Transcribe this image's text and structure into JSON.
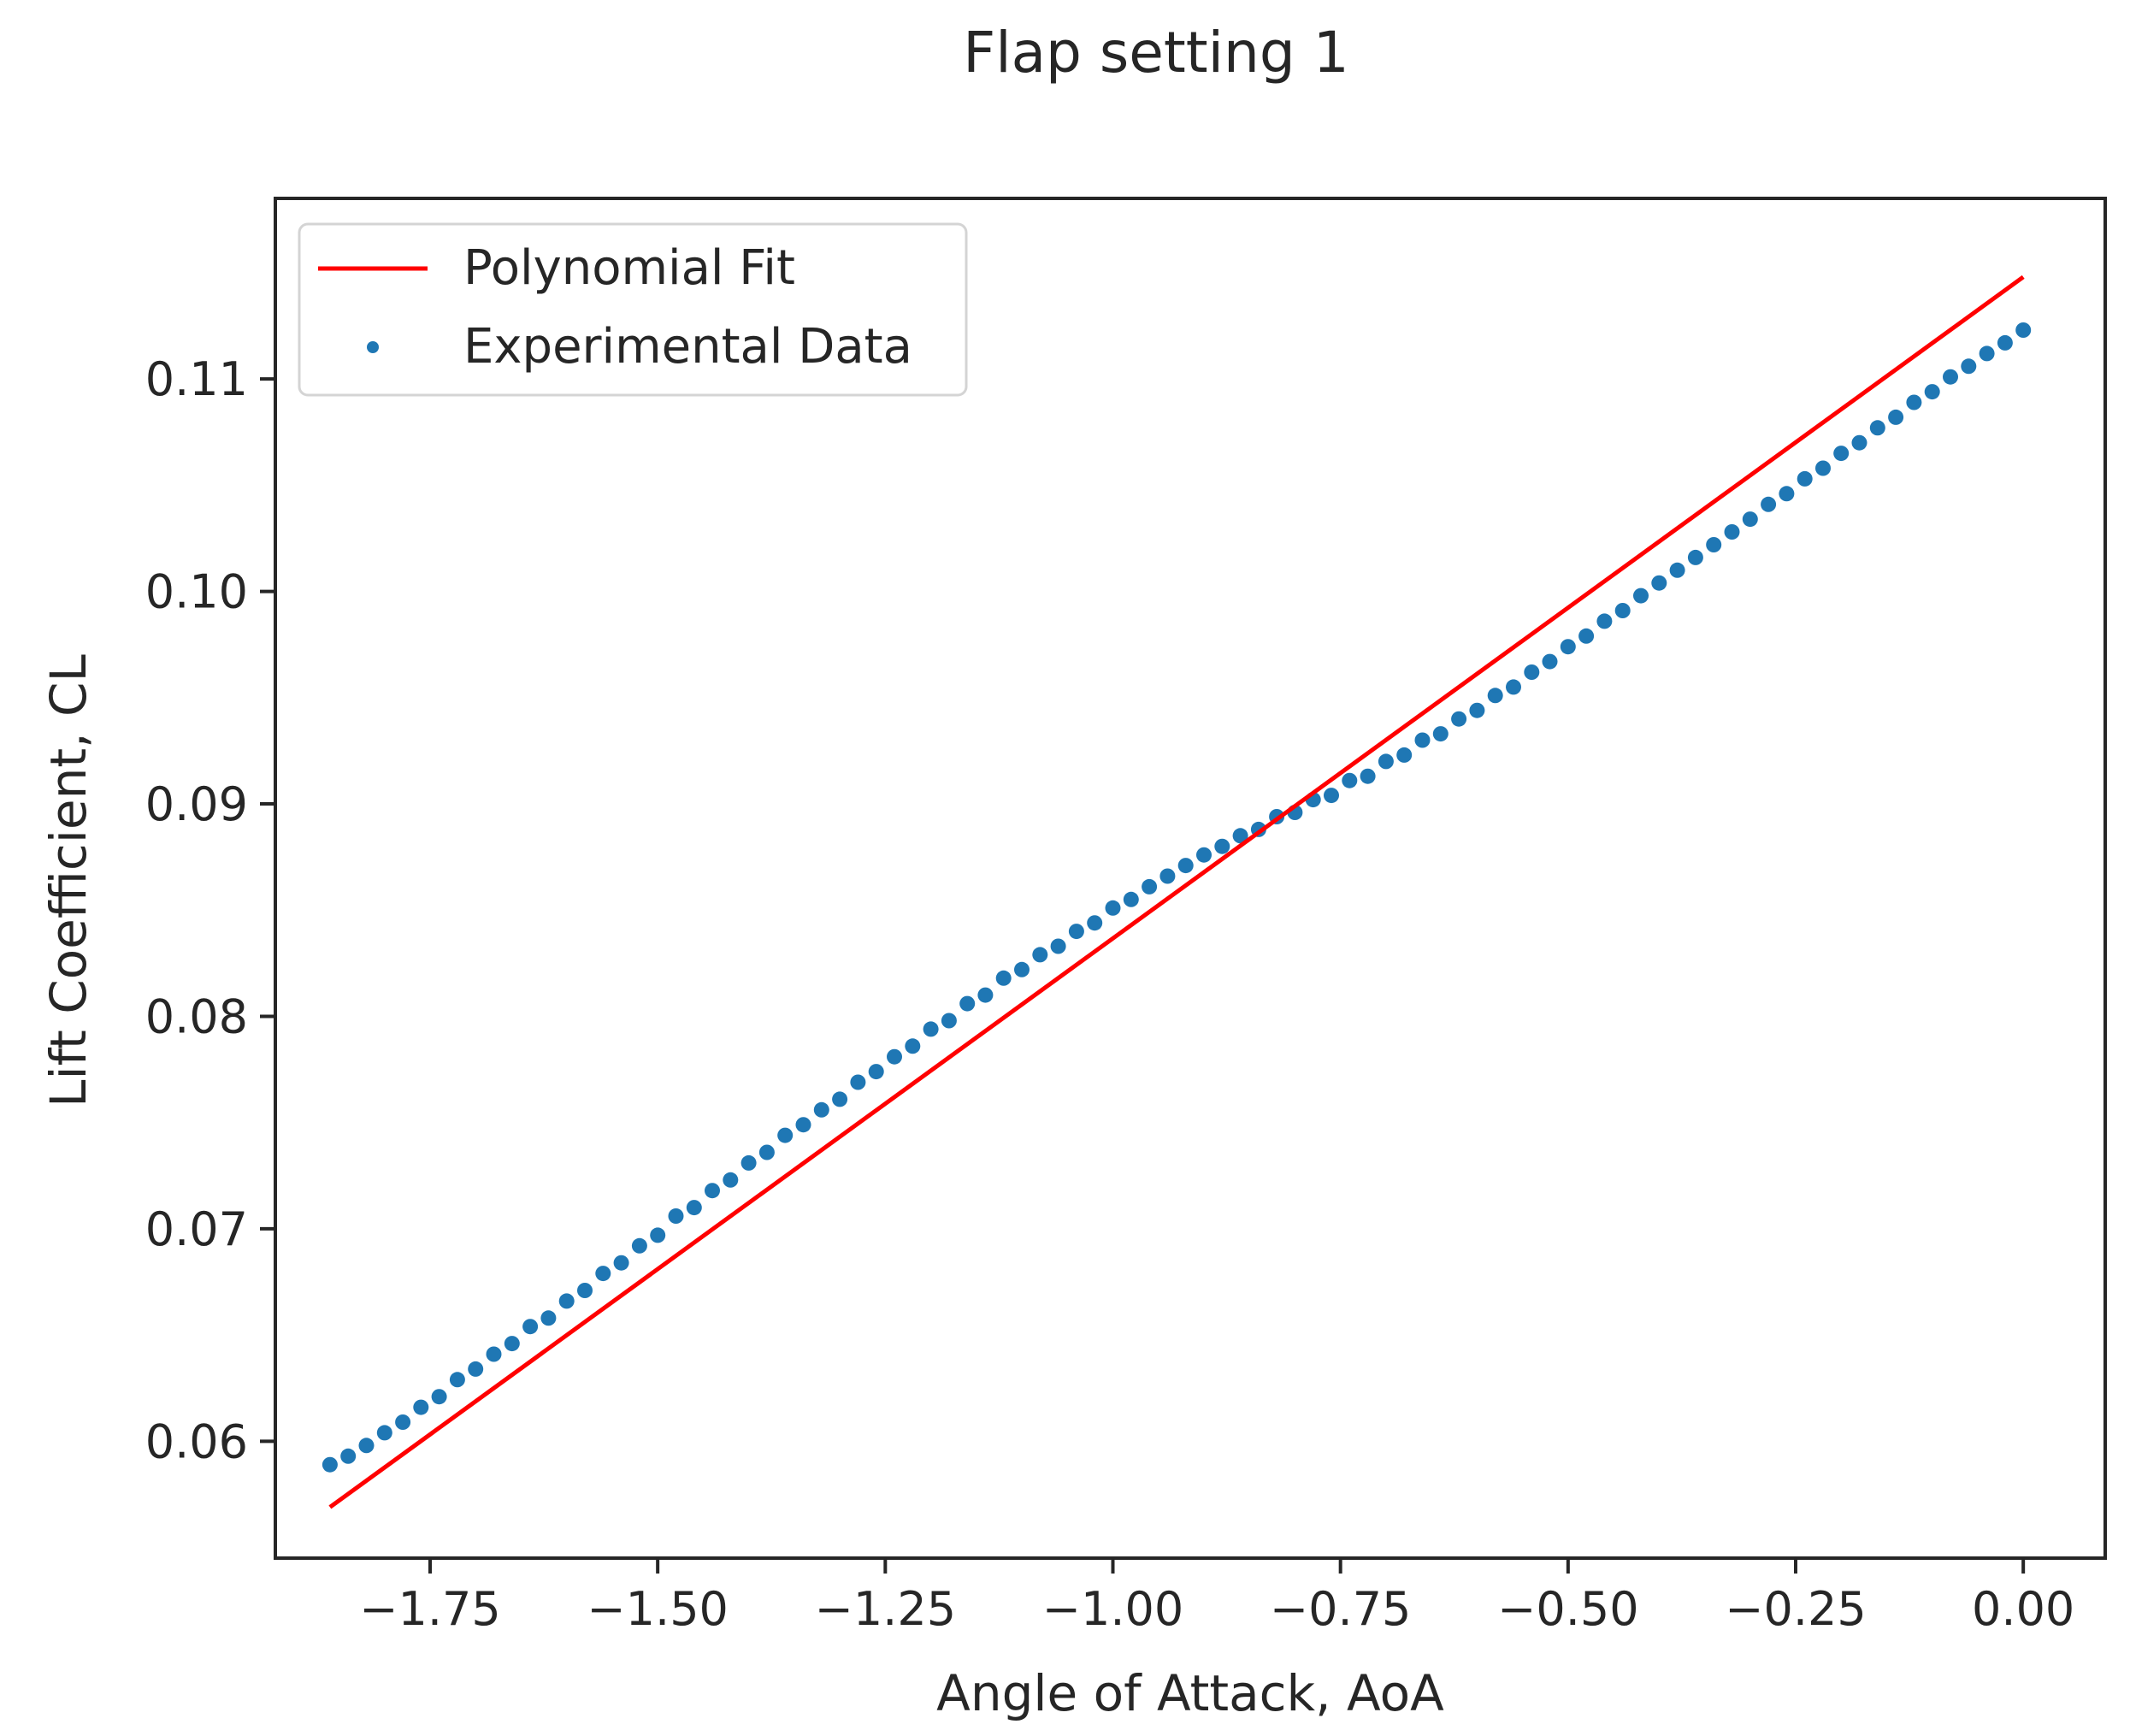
{
  "chart_data": {
    "type": "scatter",
    "title": "Flap setting 1",
    "xlabel": "Angle of Attack, AoA",
    "ylabel": "Lift Coefficient, CL",
    "xlim": [
      -1.92,
      0.09
    ],
    "ylim": [
      0.0545,
      0.1185
    ],
    "xticks": [
      -1.75,
      -1.5,
      -1.25,
      -1.0,
      -0.75,
      -0.5,
      -0.25,
      0.0
    ],
    "xtick_labels": [
      "−1.75",
      "−1.50",
      "−1.25",
      "−1.00",
      "−0.75",
      "−0.50",
      "−0.25",
      "0.00"
    ],
    "yticks": [
      0.06,
      0.07,
      0.08,
      0.09,
      0.1,
      0.11
    ],
    "ytick_labels": [
      "0.06",
      "0.07",
      "0.08",
      "0.09",
      "0.10",
      "0.11"
    ],
    "grid": false,
    "legend_position": "upper-left",
    "colors": {
      "fit": "#ff0000",
      "data": "#1f77b4"
    },
    "series": [
      {
        "name": "Polynomial Fit",
        "kind": "line",
        "x": [
          -1.86,
          0.0
        ],
        "y": [
          0.0569,
          0.1148
        ]
      },
      {
        "name": "Experimental Data",
        "kind": "scatter",
        "x": [
          -1.86,
          -1.84,
          -1.82,
          -1.8,
          -1.78,
          -1.76,
          -1.74,
          -1.72,
          -1.7,
          -1.68,
          -1.66,
          -1.64,
          -1.62,
          -1.6,
          -1.58,
          -1.56,
          -1.54,
          -1.52,
          -1.5,
          -1.48,
          -1.46,
          -1.44,
          -1.42,
          -1.4,
          -1.38,
          -1.36,
          -1.34,
          -1.32,
          -1.3,
          -1.28,
          -1.26,
          -1.24,
          -1.22,
          -1.2,
          -1.18,
          -1.16,
          -1.14,
          -1.12,
          -1.1,
          -1.08,
          -1.06,
          -1.04,
          -1.02,
          -1.0,
          -0.98,
          -0.96,
          -0.94,
          -0.92,
          -0.9,
          -0.88,
          -0.86,
          -0.84,
          -0.82,
          -0.8,
          -0.78,
          -0.76,
          -0.74,
          -0.72,
          -0.7,
          -0.68,
          -0.66,
          -0.64,
          -0.62,
          -0.6,
          -0.58,
          -0.56,
          -0.54,
          -0.52,
          -0.5,
          -0.48,
          -0.46,
          -0.44,
          -0.42,
          -0.4,
          -0.38,
          -0.36,
          -0.34,
          -0.32,
          -0.3,
          -0.28,
          -0.26,
          -0.24,
          -0.22,
          -0.2,
          -0.18,
          -0.16,
          -0.14,
          -0.12,
          -0.1,
          -0.08,
          -0.06,
          -0.04,
          -0.02,
          0.0
        ],
        "y": [
          0.0589,
          0.0593,
          0.0598,
          0.0604,
          0.0609,
          0.0616,
          0.0621,
          0.0629,
          0.0634,
          0.0641,
          0.0646,
          0.0654,
          0.0658,
          0.0666,
          0.0671,
          0.0679,
          0.0684,
          0.0692,
          0.0697,
          0.0706,
          0.071,
          0.0718,
          0.0723,
          0.0731,
          0.0736,
          0.0744,
          0.0749,
          0.0756,
          0.0761,
          0.0769,
          0.0774,
          0.0781,
          0.0786,
          0.0794,
          0.0798,
          0.0806,
          0.081,
          0.0818,
          0.0822,
          0.0829,
          0.0833,
          0.084,
          0.0844,
          0.0851,
          0.0855,
          0.0861,
          0.0866,
          0.0871,
          0.0876,
          0.088,
          0.0885,
          0.0888,
          0.0894,
          0.0896,
          0.0902,
          0.0904,
          0.0911,
          0.0913,
          0.092,
          0.0923,
          0.093,
          0.0933,
          0.094,
          0.0944,
          0.0951,
          0.0955,
          0.0962,
          0.0967,
          0.0974,
          0.0979,
          0.0986,
          0.0991,
          0.0998,
          0.1004,
          0.101,
          0.1016,
          0.1022,
          0.1028,
          0.1034,
          0.1041,
          0.1046,
          0.1053,
          0.1058,
          0.1065,
          0.107,
          0.1077,
          0.1082,
          0.1089,
          0.1094,
          0.1101,
          0.1106,
          0.1112,
          0.1117,
          0.1123
        ]
      }
    ]
  }
}
